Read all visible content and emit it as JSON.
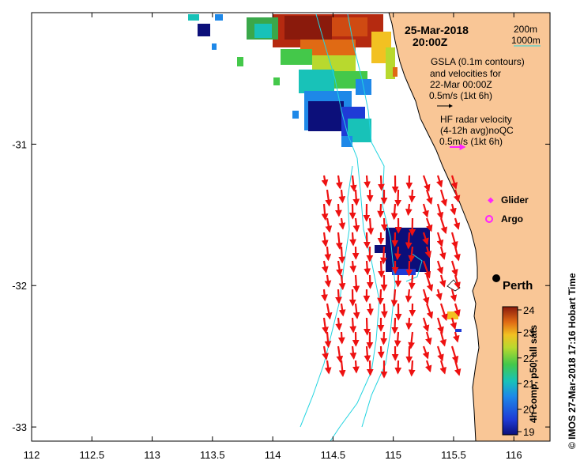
{
  "map": {
    "date": "25-Mar-2018",
    "time": "20:00Z",
    "isobaths": [
      "200m",
      "1000m"
    ],
    "gsla_label": [
      "GSLA (0.1m contours)",
      "and velocities for",
      "22-Mar 00:00Z",
      "0.5m/s (1kt 6h)"
    ],
    "hf_label": [
      "HF radar velocity",
      "(4-12h avg)noQC",
      "0.5m/s (1kt 6h)"
    ],
    "legend": {
      "glider": "Glider",
      "argo": "Argo"
    },
    "city": "Perth",
    "credit": "©  IMOS 27-Mar-2018 17:16 Hobart Time",
    "colorbar_title": "4h comp, p50, all sats",
    "colors": {
      "land": "#f9c696",
      "hf_arrow": "#ee1111",
      "isobath": "#22d4e0",
      "glider": "#ff22ff"
    }
  },
  "chart_data": {
    "type": "map",
    "x_ticks": [
      "112",
      "112.5",
      "113",
      "113.5",
      "114",
      "114.5",
      "115",
      "115.5",
      "116"
    ],
    "y_ticks": [
      "-31",
      "-32",
      "-33"
    ],
    "xlim": [
      112.0,
      116.3
    ],
    "ylim": [
      -33.1,
      -30.07
    ],
    "colorbar": {
      "ticks": [
        "24",
        "23",
        "22",
        "21",
        "20",
        "19"
      ],
      "range": [
        19,
        24
      ]
    }
  }
}
